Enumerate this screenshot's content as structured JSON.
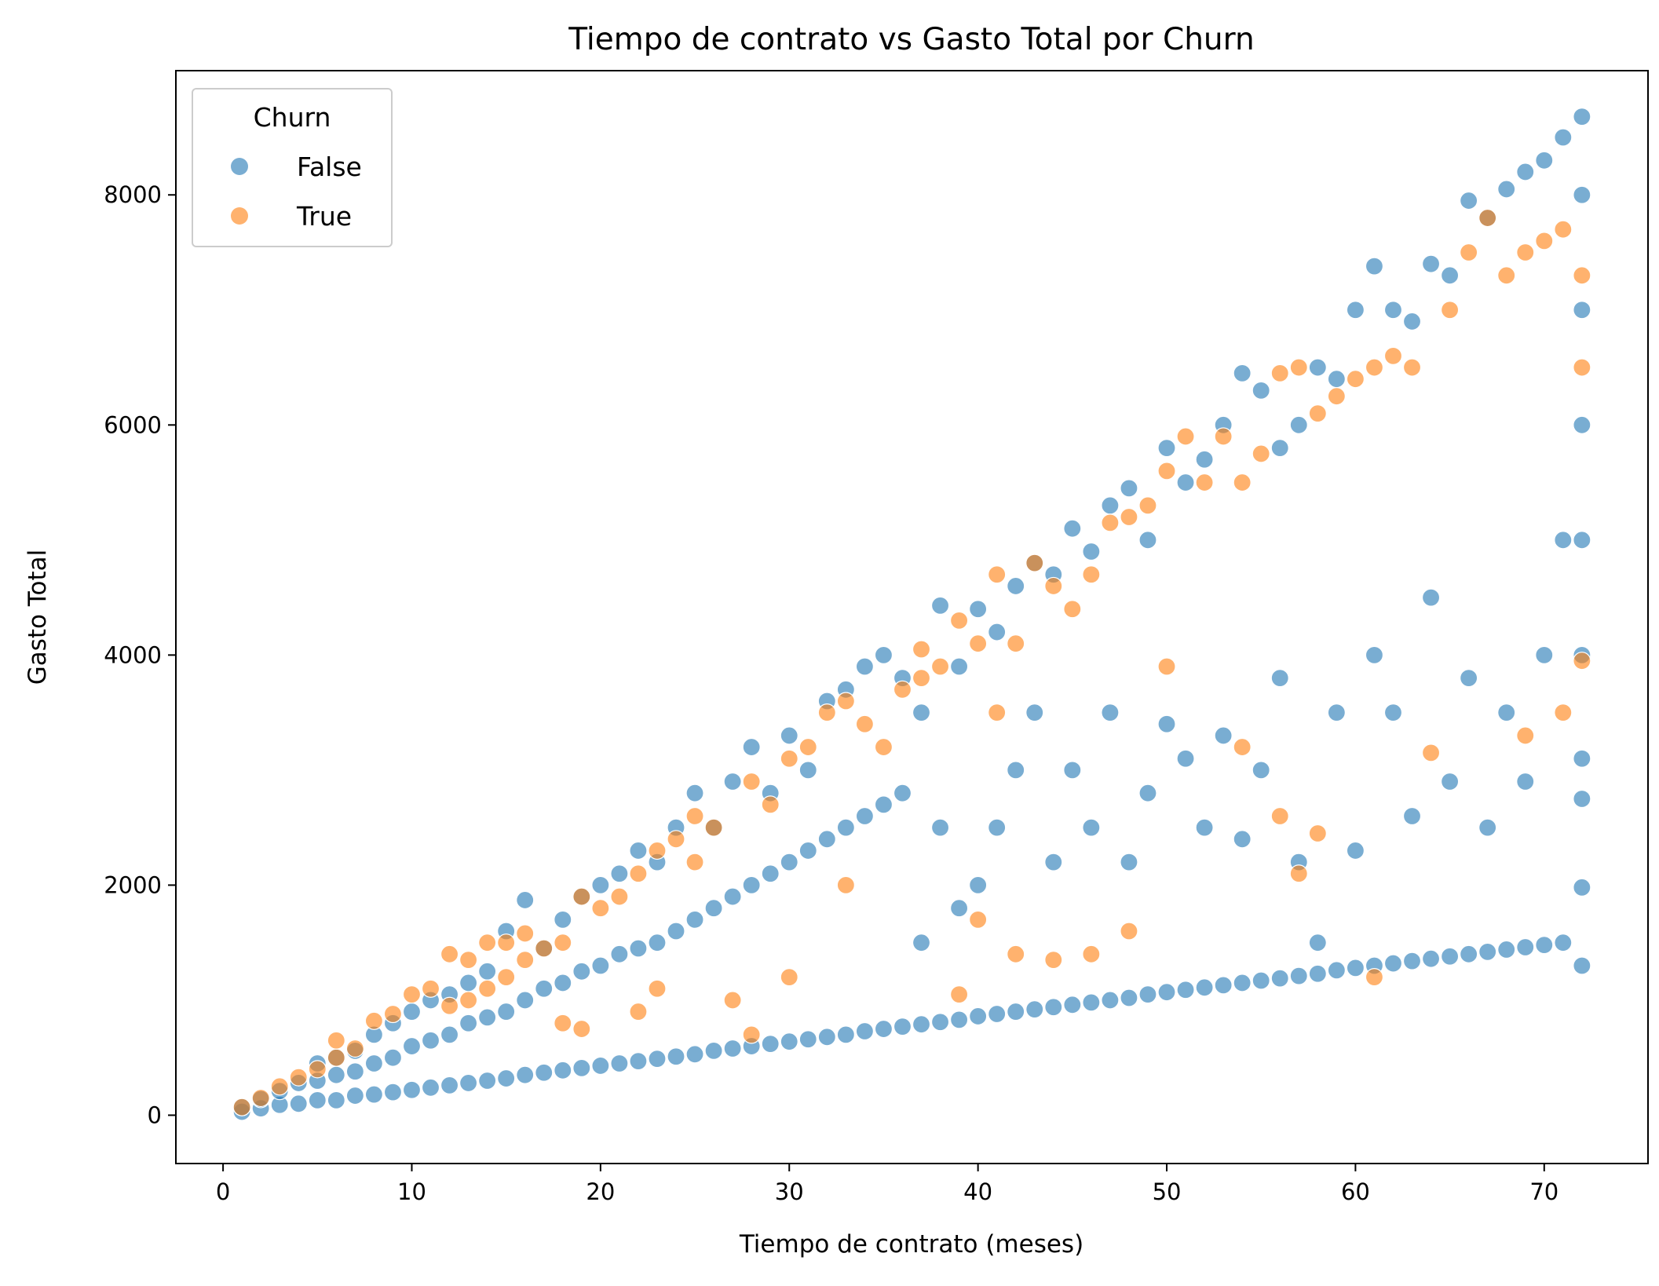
{
  "chart_data": {
    "type": "scatter",
    "title": "Tiempo de contrato vs Gasto Total por Churn",
    "xlabel": "Tiempo de contrato (meses)",
    "ylabel": "Gasto Total",
    "xlim": [
      -2.5,
      75.5
    ],
    "ylim": [
      -420,
      9080
    ],
    "xticks": [
      0,
      10,
      20,
      30,
      40,
      50,
      60,
      70
    ],
    "yticks": [
      0,
      2000,
      4000,
      6000,
      8000
    ],
    "grid": false,
    "legend": {
      "title": "Churn",
      "placement": "top-left",
      "entries": [
        {
          "label": "False",
          "color": "#1f77b4"
        },
        {
          "label": "True",
          "color": "#ff7f0e"
        }
      ]
    },
    "series": [
      {
        "name": "False",
        "color": "#1f77b4",
        "points": [
          [
            1,
            30
          ],
          [
            1,
            70
          ],
          [
            2,
            60
          ],
          [
            2,
            140
          ],
          [
            3,
            90
          ],
          [
            3,
            210
          ],
          [
            4,
            100
          ],
          [
            4,
            280
          ],
          [
            5,
            130
          ],
          [
            5,
            300
          ],
          [
            5,
            450
          ],
          [
            6,
            130
          ],
          [
            6,
            350
          ],
          [
            6,
            500
          ],
          [
            7,
            170
          ],
          [
            7,
            380
          ],
          [
            7,
            560
          ],
          [
            8,
            180
          ],
          [
            8,
            450
          ],
          [
            8,
            700
          ],
          [
            9,
            200
          ],
          [
            9,
            500
          ],
          [
            9,
            800
          ],
          [
            10,
            220
          ],
          [
            10,
            600
          ],
          [
            10,
            900
          ],
          [
            11,
            240
          ],
          [
            11,
            650
          ],
          [
            11,
            1000
          ],
          [
            12,
            260
          ],
          [
            12,
            700
          ],
          [
            12,
            1050
          ],
          [
            13,
            280
          ],
          [
            13,
            800
          ],
          [
            13,
            1150
          ],
          [
            14,
            300
          ],
          [
            14,
            850
          ],
          [
            14,
            1250
          ],
          [
            15,
            320
          ],
          [
            15,
            900
          ],
          [
            15,
            1600
          ],
          [
            16,
            350
          ],
          [
            16,
            1000
          ],
          [
            16,
            1870
          ],
          [
            17,
            370
          ],
          [
            17,
            1100
          ],
          [
            17,
            1450
          ],
          [
            18,
            390
          ],
          [
            18,
            1150
          ],
          [
            18,
            1700
          ],
          [
            19,
            410
          ],
          [
            19,
            1250
          ],
          [
            19,
            1900
          ],
          [
            20,
            430
          ],
          [
            20,
            1300
          ],
          [
            20,
            2000
          ],
          [
            21,
            450
          ],
          [
            21,
            1400
          ],
          [
            21,
            2100
          ],
          [
            22,
            470
          ],
          [
            22,
            1450
          ],
          [
            22,
            2300
          ],
          [
            23,
            490
          ],
          [
            23,
            1500
          ],
          [
            23,
            2200
          ],
          [
            24,
            510
          ],
          [
            24,
            1600
          ],
          [
            24,
            2500
          ],
          [
            25,
            530
          ],
          [
            25,
            1700
          ],
          [
            25,
            2800
          ],
          [
            26,
            560
          ],
          [
            26,
            1800
          ],
          [
            26,
            2500
          ],
          [
            27,
            580
          ],
          [
            27,
            1900
          ],
          [
            27,
            2900
          ],
          [
            28,
            600
          ],
          [
            28,
            2000
          ],
          [
            28,
            3200
          ],
          [
            29,
            620
          ],
          [
            29,
            2100
          ],
          [
            29,
            2800
          ],
          [
            30,
            640
          ],
          [
            30,
            2200
          ],
          [
            30,
            3300
          ],
          [
            31,
            660
          ],
          [
            31,
            2300
          ],
          [
            31,
            3000
          ],
          [
            32,
            680
          ],
          [
            32,
            2400
          ],
          [
            32,
            3600
          ],
          [
            33,
            700
          ],
          [
            33,
            2500
          ],
          [
            33,
            3700
          ],
          [
            34,
            730
          ],
          [
            34,
            2600
          ],
          [
            34,
            3900
          ],
          [
            35,
            750
          ],
          [
            35,
            2700
          ],
          [
            35,
            4000
          ],
          [
            36,
            770
          ],
          [
            36,
            2800
          ],
          [
            36,
            3800
          ],
          [
            37,
            790
          ],
          [
            37,
            1500
          ],
          [
            37,
            3500
          ],
          [
            38,
            810
          ],
          [
            38,
            4430
          ],
          [
            38,
            2500
          ],
          [
            39,
            830
          ],
          [
            39,
            1800
          ],
          [
            39,
            3900
          ],
          [
            40,
            860
          ],
          [
            40,
            2000
          ],
          [
            40,
            4400
          ],
          [
            41,
            880
          ],
          [
            41,
            2500
          ],
          [
            41,
            4200
          ],
          [
            42,
            900
          ],
          [
            42,
            3000
          ],
          [
            42,
            4600
          ],
          [
            43,
            920
          ],
          [
            43,
            3500
          ],
          [
            43,
            4800
          ],
          [
            44,
            940
          ],
          [
            44,
            2200
          ],
          [
            44,
            4700
          ],
          [
            45,
            960
          ],
          [
            45,
            3000
          ],
          [
            45,
            5100
          ],
          [
            46,
            980
          ],
          [
            46,
            2500
          ],
          [
            46,
            4900
          ],
          [
            47,
            1000
          ],
          [
            47,
            3500
          ],
          [
            47,
            5300
          ],
          [
            48,
            1020
          ],
          [
            48,
            2200
          ],
          [
            48,
            5450
          ],
          [
            49,
            1050
          ],
          [
            49,
            2800
          ],
          [
            49,
            5000
          ],
          [
            50,
            1070
          ],
          [
            50,
            3400
          ],
          [
            50,
            5800
          ],
          [
            51,
            1090
          ],
          [
            51,
            3100
          ],
          [
            51,
            5500
          ],
          [
            52,
            1110
          ],
          [
            52,
            2500
          ],
          [
            52,
            5700
          ],
          [
            53,
            1130
          ],
          [
            53,
            3300
          ],
          [
            53,
            6000
          ],
          [
            54,
            1150
          ],
          [
            54,
            2400
          ],
          [
            54,
            6450
          ],
          [
            55,
            1170
          ],
          [
            55,
            3000
          ],
          [
            55,
            6300
          ],
          [
            56,
            1190
          ],
          [
            56,
            3800
          ],
          [
            56,
            5800
          ],
          [
            57,
            1210
          ],
          [
            57,
            2200
          ],
          [
            57,
            6000
          ],
          [
            58,
            1230
          ],
          [
            58,
            1500
          ],
          [
            58,
            6500
          ],
          [
            59,
            1260
          ],
          [
            59,
            3500
          ],
          [
            59,
            6400
          ],
          [
            60,
            1280
          ],
          [
            60,
            2300
          ],
          [
            60,
            7000
          ],
          [
            61,
            1300
          ],
          [
            61,
            4000
          ],
          [
            61,
            7380
          ],
          [
            62,
            1320
          ],
          [
            62,
            3500
          ],
          [
            62,
            7000
          ],
          [
            63,
            1340
          ],
          [
            63,
            2600
          ],
          [
            63,
            6900
          ],
          [
            64,
            1360
          ],
          [
            64,
            4500
          ],
          [
            64,
            7400
          ],
          [
            65,
            1380
          ],
          [
            65,
            2900
          ],
          [
            65,
            7300
          ],
          [
            66,
            1400
          ],
          [
            66,
            3800
          ],
          [
            66,
            7950
          ],
          [
            67,
            1420
          ],
          [
            67,
            2500
          ],
          [
            67,
            7800
          ],
          [
            68,
            1440
          ],
          [
            68,
            3500
          ],
          [
            68,
            8050
          ],
          [
            69,
            1460
          ],
          [
            69,
            2900
          ],
          [
            69,
            8200
          ],
          [
            70,
            1480
          ],
          [
            70,
            4000
          ],
          [
            70,
            8300
          ],
          [
            71,
            1500
          ],
          [
            71,
            5000
          ],
          [
            71,
            8500
          ],
          [
            72,
            1300
          ],
          [
            72,
            1980
          ],
          [
            72,
            2750
          ],
          [
            72,
            3100
          ],
          [
            72,
            4000
          ],
          [
            72,
            5000
          ],
          [
            72,
            6000
          ],
          [
            72,
            7000
          ],
          [
            72,
            8000
          ],
          [
            72,
            8680
          ]
        ]
      },
      {
        "name": "True",
        "color": "#ff7f0e",
        "points": [
          [
            1,
            70
          ],
          [
            2,
            150
          ],
          [
            3,
            250
          ],
          [
            4,
            330
          ],
          [
            5,
            400
          ],
          [
            6,
            500
          ],
          [
            6,
            650
          ],
          [
            7,
            580
          ],
          [
            8,
            820
          ],
          [
            9,
            880
          ],
          [
            10,
            1050
          ],
          [
            11,
            1100
          ],
          [
            12,
            950
          ],
          [
            12,
            1400
          ],
          [
            13,
            1000
          ],
          [
            13,
            1350
          ],
          [
            14,
            1100
          ],
          [
            14,
            1500
          ],
          [
            15,
            1200
          ],
          [
            15,
            1500
          ],
          [
            16,
            1350
          ],
          [
            16,
            1580
          ],
          [
            17,
            1450
          ],
          [
            18,
            1500
          ],
          [
            18,
            800
          ],
          [
            19,
            1900
          ],
          [
            19,
            750
          ],
          [
            20,
            1800
          ],
          [
            21,
            1900
          ],
          [
            22,
            2100
          ],
          [
            22,
            900
          ],
          [
            23,
            2300
          ],
          [
            23,
            1100
          ],
          [
            24,
            2400
          ],
          [
            25,
            2200
          ],
          [
            25,
            2600
          ],
          [
            26,
            2500
          ],
          [
            27,
            1000
          ],
          [
            28,
            2900
          ],
          [
            28,
            700
          ],
          [
            29,
            2700
          ],
          [
            30,
            1200
          ],
          [
            30,
            3100
          ],
          [
            31,
            3200
          ],
          [
            32,
            3500
          ],
          [
            33,
            3600
          ],
          [
            33,
            2000
          ],
          [
            34,
            3400
          ],
          [
            35,
            3200
          ],
          [
            36,
            3700
          ],
          [
            37,
            3800
          ],
          [
            37,
            4050
          ],
          [
            38,
            3900
          ],
          [
            39,
            4300
          ],
          [
            39,
            1050
          ],
          [
            40,
            4100
          ],
          [
            40,
            1700
          ],
          [
            41,
            4700
          ],
          [
            41,
            3500
          ],
          [
            42,
            1400
          ],
          [
            42,
            4100
          ],
          [
            43,
            4800
          ],
          [
            44,
            1350
          ],
          [
            44,
            4600
          ],
          [
            45,
            4400
          ],
          [
            46,
            4700
          ],
          [
            46,
            1400
          ],
          [
            47,
            5150
          ],
          [
            48,
            5200
          ],
          [
            48,
            1600
          ],
          [
            49,
            5300
          ],
          [
            50,
            5600
          ],
          [
            50,
            3900
          ],
          [
            51,
            5900
          ],
          [
            52,
            5500
          ],
          [
            53,
            5900
          ],
          [
            54,
            5500
          ],
          [
            54,
            3200
          ],
          [
            55,
            5750
          ],
          [
            56,
            6450
          ],
          [
            56,
            2600
          ],
          [
            57,
            6500
          ],
          [
            57,
            2100
          ],
          [
            58,
            6100
          ],
          [
            58,
            2450
          ],
          [
            59,
            6250
          ],
          [
            60,
            6400
          ],
          [
            61,
            6500
          ],
          [
            61,
            1200
          ],
          [
            62,
            6600
          ],
          [
            63,
            6500
          ],
          [
            64,
            3150
          ],
          [
            65,
            7000
          ],
          [
            66,
            7500
          ],
          [
            67,
            7800
          ],
          [
            68,
            7300
          ],
          [
            69,
            7500
          ],
          [
            69,
            3300
          ],
          [
            70,
            7600
          ],
          [
            71,
            7700
          ],
          [
            71,
            3500
          ],
          [
            72,
            3950
          ],
          [
            72,
            6500
          ],
          [
            72,
            7300
          ]
        ]
      }
    ]
  }
}
